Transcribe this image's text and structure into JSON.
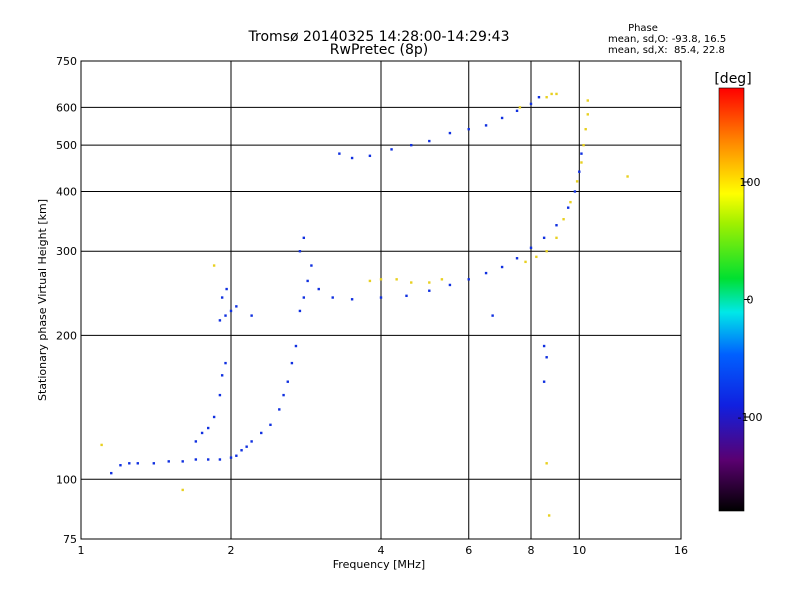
{
  "chart_data": {
    "type": "scatter",
    "title": "Tromsø 20140325 14:28:00-14:29:43",
    "subtitle": "RwPretec (8p)",
    "xlabel": "Frequency [MHz]",
    "ylabel": "Stationary phase Virtual Height [km]",
    "x_scale": "log",
    "y_scale": "log",
    "xlim": [
      1,
      16
    ],
    "ylim": [
      75,
      750
    ],
    "x_ticks": [
      1,
      2,
      4,
      6,
      8,
      10,
      16
    ],
    "y_ticks": [
      75,
      100,
      200,
      300,
      400,
      500,
      600,
      750
    ],
    "x_grid": [
      2,
      4,
      6,
      8,
      10
    ],
    "y_grid": [
      100,
      200,
      300,
      400,
      500,
      600
    ],
    "grid": true,
    "phase_box": {
      "heading": "Phase",
      "line_o": "mean, sd,O: -93.8, 16.5",
      "line_x": "mean, sd,X:  85.4, 22.8"
    },
    "colorbar": {
      "label": "[deg]",
      "ticks": [
        100,
        0,
        -100
      ],
      "range": [
        -180,
        180
      ],
      "colormap": "rainbow (black-purple-blue-cyan-green-yellow-red)"
    },
    "colors": {
      "o_mode": "#1030e0",
      "x_mode": "#e8d020",
      "grid": "#000000"
    },
    "series": [
      {
        "mode": "O",
        "phase": -110,
        "points": [
          [
            1.15,
            103
          ],
          [
            1.2,
            107
          ],
          [
            1.25,
            108
          ],
          [
            1.3,
            108
          ],
          [
            1.4,
            108
          ],
          [
            1.5,
            109
          ],
          [
            1.6,
            109
          ],
          [
            1.7,
            110
          ],
          [
            1.8,
            110
          ],
          [
            1.9,
            110
          ],
          [
            2.0,
            111
          ],
          [
            2.05,
            112
          ],
          [
            2.1,
            115
          ],
          [
            2.15,
            117
          ],
          [
            2.2,
            120
          ],
          [
            2.3,
            125
          ],
          [
            2.4,
            130
          ],
          [
            2.5,
            140
          ],
          [
            2.55,
            150
          ],
          [
            2.6,
            160
          ],
          [
            2.65,
            175
          ],
          [
            2.7,
            190
          ],
          [
            1.7,
            120
          ],
          [
            1.75,
            125
          ],
          [
            1.8,
            128
          ],
          [
            1.85,
            135
          ],
          [
            1.9,
            150
          ],
          [
            1.92,
            165
          ],
          [
            1.95,
            175
          ],
          [
            1.9,
            215
          ],
          [
            1.95,
            220
          ],
          [
            2.0,
            225
          ],
          [
            1.92,
            240
          ],
          [
            1.96,
            250
          ],
          [
            2.05,
            230
          ],
          [
            2.2,
            220
          ],
          [
            2.75,
            225
          ],
          [
            2.8,
            240
          ],
          [
            2.85,
            260
          ],
          [
            2.75,
            300
          ],
          [
            2.8,
            320
          ],
          [
            2.9,
            280
          ],
          [
            3.0,
            250
          ],
          [
            3.2,
            240
          ],
          [
            3.5,
            238
          ],
          [
            4.0,
            240
          ],
          [
            4.5,
            242
          ],
          [
            5.0,
            248
          ],
          [
            5.5,
            255
          ],
          [
            6.0,
            262
          ],
          [
            6.5,
            270
          ],
          [
            7.0,
            278
          ],
          [
            7.5,
            290
          ],
          [
            8.0,
            305
          ],
          [
            8.5,
            320
          ],
          [
            9.0,
            340
          ],
          [
            9.5,
            370
          ],
          [
            9.8,
            400
          ],
          [
            10.0,
            440
          ],
          [
            10.1,
            480
          ],
          [
            3.3,
            480
          ],
          [
            3.5,
            470
          ],
          [
            3.8,
            475
          ],
          [
            4.2,
            490
          ],
          [
            4.6,
            500
          ],
          [
            5.0,
            510
          ],
          [
            5.5,
            530
          ],
          [
            6.0,
            540
          ],
          [
            6.5,
            550
          ],
          [
            7.0,
            570
          ],
          [
            7.5,
            590
          ],
          [
            8.0,
            610
          ],
          [
            8.3,
            630
          ],
          [
            6.7,
            220
          ],
          [
            8.5,
            190
          ],
          [
            8.6,
            180
          ],
          [
            8.5,
            160
          ]
        ]
      },
      {
        "mode": "X",
        "phase": 85,
        "points": [
          [
            3.8,
            260
          ],
          [
            4.0,
            262
          ],
          [
            4.3,
            262
          ],
          [
            4.6,
            258
          ],
          [
            5.0,
            258
          ],
          [
            5.3,
            262
          ],
          [
            7.8,
            285
          ],
          [
            8.2,
            292
          ],
          [
            8.6,
            300
          ],
          [
            9.0,
            320
          ],
          [
            9.3,
            350
          ],
          [
            9.6,
            380
          ],
          [
            9.9,
            420
          ],
          [
            10.1,
            460
          ],
          [
            10.2,
            500
          ],
          [
            10.3,
            540
          ],
          [
            10.4,
            580
          ],
          [
            10.4,
            620
          ],
          [
            8.6,
            630
          ],
          [
            8.8,
            640
          ],
          [
            9.0,
            640
          ],
          [
            7.6,
            600
          ],
          [
            12.5,
            430
          ],
          [
            8.6,
            108
          ],
          [
            8.7,
            84
          ],
          [
            1.1,
            118
          ],
          [
            1.85,
            280
          ],
          [
            1.6,
            95
          ]
        ]
      }
    ]
  }
}
